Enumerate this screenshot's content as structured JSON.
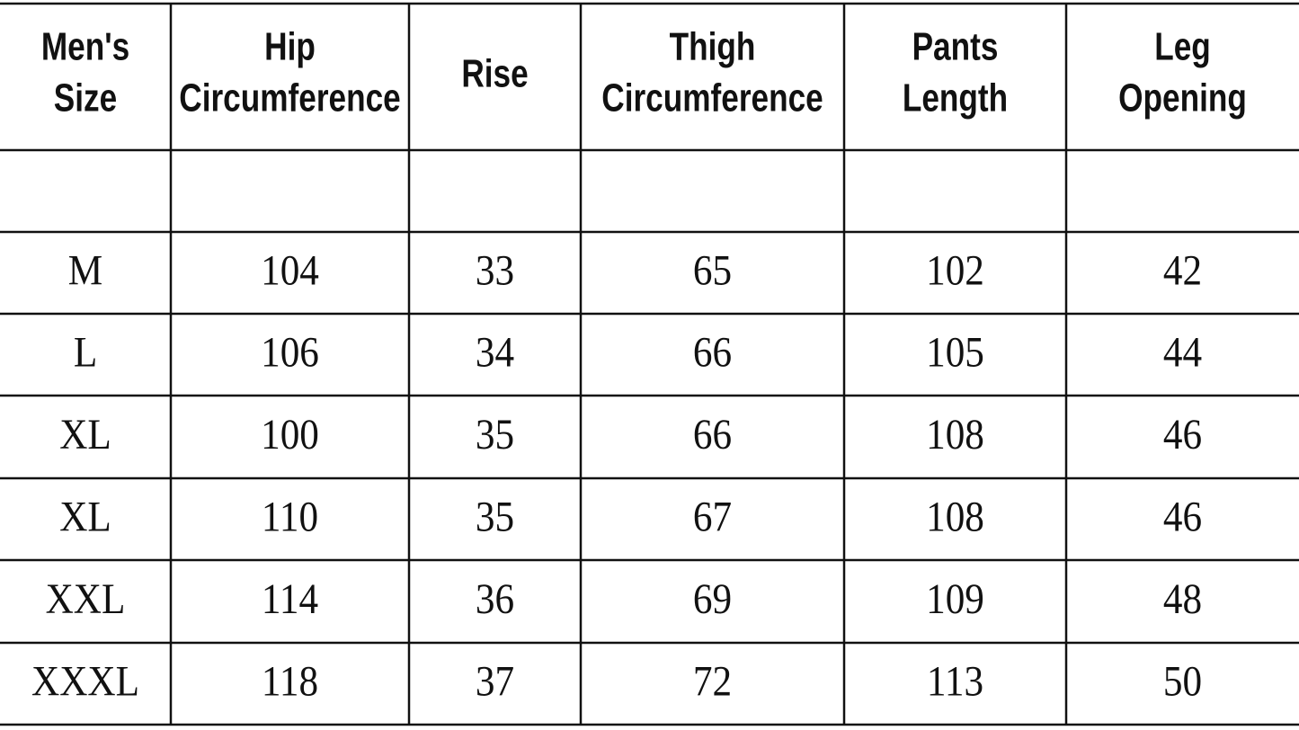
{
  "table": {
    "header": [
      [
        "Men's",
        "Size"
      ],
      [
        "Hip",
        "Circumference"
      ],
      [
        "Rise"
      ],
      [
        "Thigh",
        "Circumference"
      ],
      [
        "Pants",
        "Length"
      ],
      [
        "Leg",
        "Opening"
      ]
    ],
    "rows": [
      [
        "M",
        104,
        33,
        65,
        102,
        42
      ],
      [
        "L",
        106,
        34,
        66,
        105,
        44
      ],
      [
        "XL",
        100,
        35,
        66,
        108,
        46
      ],
      [
        "XL",
        110,
        35,
        67,
        108,
        46
      ],
      [
        "XXL",
        114,
        36,
        69,
        109,
        48
      ],
      [
        "XXXL",
        118,
        37,
        72,
        113,
        50
      ]
    ]
  }
}
